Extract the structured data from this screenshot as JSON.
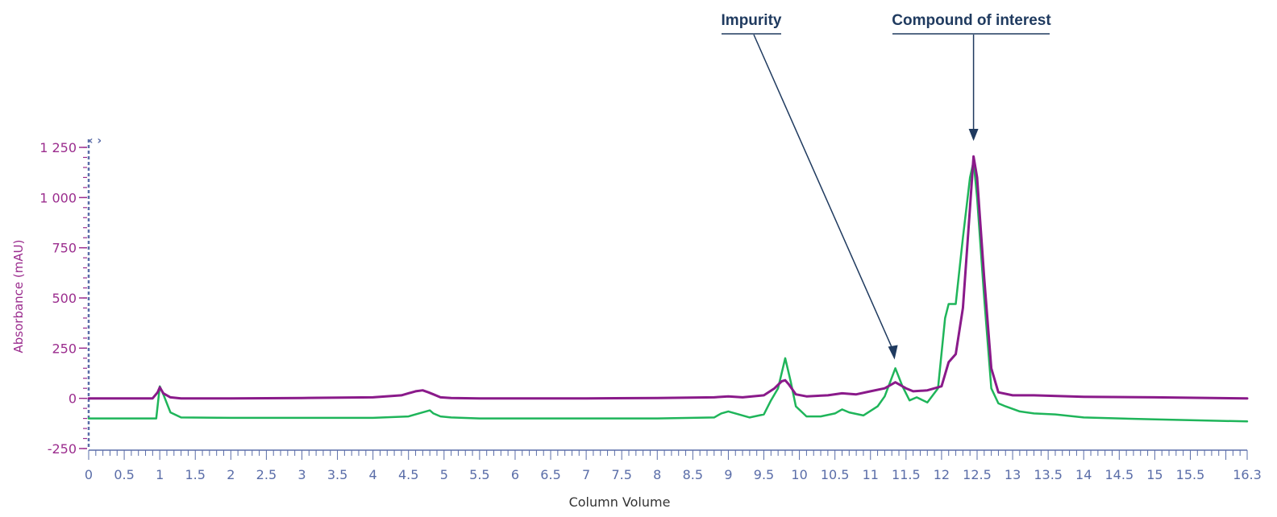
{
  "chart_data": {
    "type": "line",
    "xlabel": "Column Volume",
    "ylabel": "Absorbance (mAU)",
    "xlim": [
      0,
      16.3
    ],
    "ylim": [
      -250,
      1250
    ],
    "x_ticks": [
      0,
      0.5,
      1,
      1.5,
      2,
      2.5,
      3,
      3.5,
      4,
      4.5,
      5,
      5.5,
      6,
      6.5,
      7,
      7.5,
      8,
      8.5,
      9,
      9.5,
      10,
      10.5,
      11,
      11.5,
      12,
      12.5,
      13,
      13.5,
      14,
      14.5,
      15,
      15.5,
      16.3
    ],
    "x_tick_labels": [
      "0",
      "0.5",
      "1",
      "1.5",
      "2",
      "2.5",
      "3",
      "3.5",
      "4",
      "4.5",
      "5",
      "5.5",
      "6",
      "6.5",
      "7",
      "7.5",
      "8",
      "8.5",
      "9",
      "9.5",
      "10",
      "10.5",
      "11",
      "11.5",
      "12",
      "12.5",
      "13",
      "13.5",
      "14",
      "14.5",
      "15",
      "15.5",
      "16.3"
    ],
    "y_ticks": [
      -250,
      0,
      250,
      500,
      750,
      1000,
      1250
    ],
    "y_tick_labels": [
      "-250",
      "0",
      "250",
      "500",
      "750",
      "1 000",
      "1 250"
    ],
    "grid": false,
    "colors": {
      "axis_y": "#9b2d8e",
      "axis_x": "#5a6da8",
      "annotation": "#1f3a5f"
    },
    "series": [
      {
        "color": "#8a1a8a",
        "x": [
          0,
          0.9,
          0.97,
          1.0,
          1.05,
          1.15,
          1.3,
          2,
          3,
          4,
          4.4,
          4.6,
          4.7,
          4.78,
          4.85,
          4.95,
          5.1,
          5.5,
          6,
          7,
          8,
          8.8,
          9.0,
          9.2,
          9.5,
          9.65,
          9.75,
          9.8,
          9.85,
          9.95,
          10.1,
          10.4,
          10.6,
          10.8,
          11.0,
          11.2,
          11.35,
          11.5,
          11.6,
          11.8,
          12.0,
          12.1,
          12.2,
          12.3,
          12.4,
          12.45,
          12.5,
          12.6,
          12.7,
          12.8,
          13.0,
          13.3,
          14,
          15,
          16.3
        ],
        "y": [
          0,
          0,
          30,
          55,
          25,
          5,
          0,
          0,
          2,
          5,
          15,
          35,
          40,
          30,
          20,
          5,
          2,
          0,
          0,
          0,
          2,
          5,
          10,
          5,
          15,
          50,
          85,
          90,
          70,
          20,
          10,
          15,
          25,
          20,
          35,
          50,
          80,
          50,
          35,
          40,
          60,
          180,
          220,
          450,
          950,
          1205,
          1100,
          600,
          150,
          30,
          15,
          15,
          8,
          5,
          0
        ]
      },
      {
        "color": "#1fb55a",
        "x": [
          0,
          0.95,
          1.0,
          1.05,
          1.15,
          1.3,
          2,
          3,
          4,
          4.5,
          4.7,
          4.8,
          4.85,
          4.95,
          5.1,
          5.5,
          6,
          7,
          8,
          8.8,
          8.9,
          9.0,
          9.1,
          9.3,
          9.5,
          9.6,
          9.7,
          9.8,
          9.88,
          9.95,
          10.1,
          10.3,
          10.5,
          10.6,
          10.7,
          10.9,
          11.1,
          11.2,
          11.35,
          11.45,
          11.55,
          11.65,
          11.8,
          11.95,
          12.05,
          12.1,
          12.2,
          12.3,
          12.4,
          12.45,
          12.5,
          12.6,
          12.7,
          12.8,
          12.9,
          13.1,
          13.3,
          13.6,
          14,
          15,
          16.3
        ],
        "y": [
          -100,
          -100,
          60,
          20,
          -70,
          -95,
          -97,
          -97,
          -97,
          -90,
          -70,
          -60,
          -75,
          -90,
          -95,
          -100,
          -100,
          -100,
          -100,
          -95,
          -75,
          -65,
          -75,
          -95,
          -80,
          -10,
          50,
          200,
          80,
          -40,
          -90,
          -90,
          -75,
          -55,
          -70,
          -85,
          -40,
          10,
          150,
          60,
          -10,
          5,
          -20,
          50,
          400,
          470,
          470,
          800,
          1100,
          1180,
          1000,
          500,
          50,
          -25,
          -40,
          -65,
          -75,
          -80,
          -95,
          -105,
          -115
        ]
      }
    ],
    "annotations": [
      {
        "text": "Impurity",
        "x": 11.35,
        "y": 185
      },
      {
        "text": "Compound of interest",
        "x": 12.45,
        "y": 1300
      }
    ]
  }
}
